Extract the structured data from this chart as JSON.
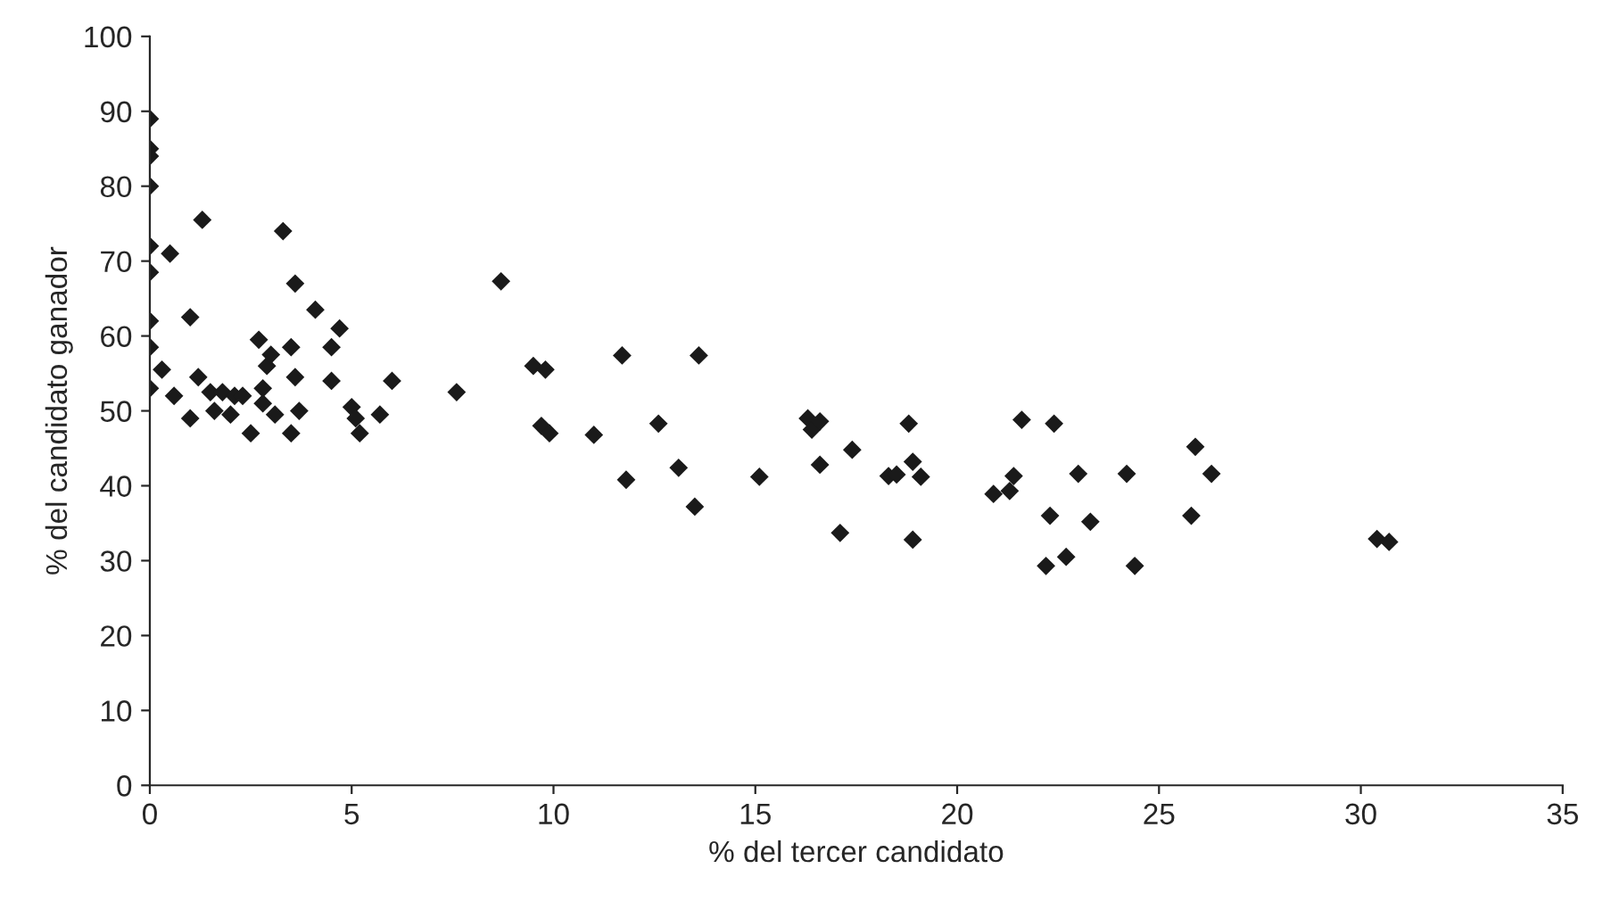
{
  "chart_data": {
    "type": "scatter",
    "xlabel": "% del tercer candidato",
    "ylabel": "% del candidato ganador",
    "x": [
      0,
      0,
      0,
      0,
      0,
      0,
      0,
      0,
      0,
      0.5,
      1.3,
      1,
      0.3,
      0.6,
      1,
      1.2,
      1.5,
      1.6,
      1.8,
      2,
      2.1,
      2.3,
      2.5,
      2.7,
      2.8,
      2.8,
      2.9,
      3,
      3.1,
      3.3,
      3.5,
      3.6,
      3.6,
      3.5,
      3.7,
      4.1,
      4.5,
      4.5,
      4.7,
      5,
      5.1,
      5.2,
      5.7,
      6,
      7.6,
      8.7,
      9.5,
      9.8,
      9.7,
      9.9,
      11,
      11.7,
      11.8,
      12.6,
      13.1,
      13.5,
      13.6,
      15.1,
      16.3,
      16.4,
      16.6,
      16.6,
      17.1,
      17.4,
      18.3,
      18.5,
      18.8,
      18.9,
      18.9,
      19.1,
      20.9,
      21.3,
      21.4,
      21.6,
      22.2,
      22.3,
      22.4,
      22.7,
      23,
      23.3,
      24.2,
      24.4,
      25.8,
      25.9,
      26.3,
      30.4,
      30.7
    ],
    "values": [
      89,
      85,
      84,
      80,
      72,
      68.5,
      62,
      58.5,
      53,
      71,
      75.5,
      62.5,
      55.5,
      52,
      49,
      54.5,
      52.5,
      50,
      52.5,
      49.5,
      52,
      52,
      47,
      59.5,
      53,
      51,
      56,
      57.5,
      49.5,
      74,
      58.5,
      67,
      54.5,
      47,
      50,
      63.5,
      58.5,
      54,
      61,
      50.5,
      49,
      47,
      49.5,
      54,
      52.5,
      67.3,
      56,
      55.5,
      48,
      47,
      46.8,
      57.4,
      40.8,
      48.3,
      42.4,
      37.2,
      57.4,
      41.2,
      49,
      47.5,
      48.6,
      42.8,
      33.7,
      44.8,
      41.3,
      41.5,
      48.3,
      43.2,
      32.8,
      41.2,
      38.9,
      39.3,
      41.3,
      48.8,
      29.3,
      36,
      48.3,
      30.5,
      41.6,
      35.2,
      41.6,
      29.3,
      36,
      45.2,
      41.6,
      32.9,
      32.5
    ],
    "color": "#1a1a1a",
    "marker": "diamond",
    "xlim": [
      0,
      35
    ],
    "xticks": [
      0,
      5,
      10,
      15,
      20,
      25,
      30,
      35
    ],
    "ylim": [
      0,
      100
    ],
    "yticks": [
      0,
      10,
      20,
      30,
      40,
      50,
      60,
      70,
      80,
      90,
      100
    ],
    "grid": false,
    "legend": false
  }
}
